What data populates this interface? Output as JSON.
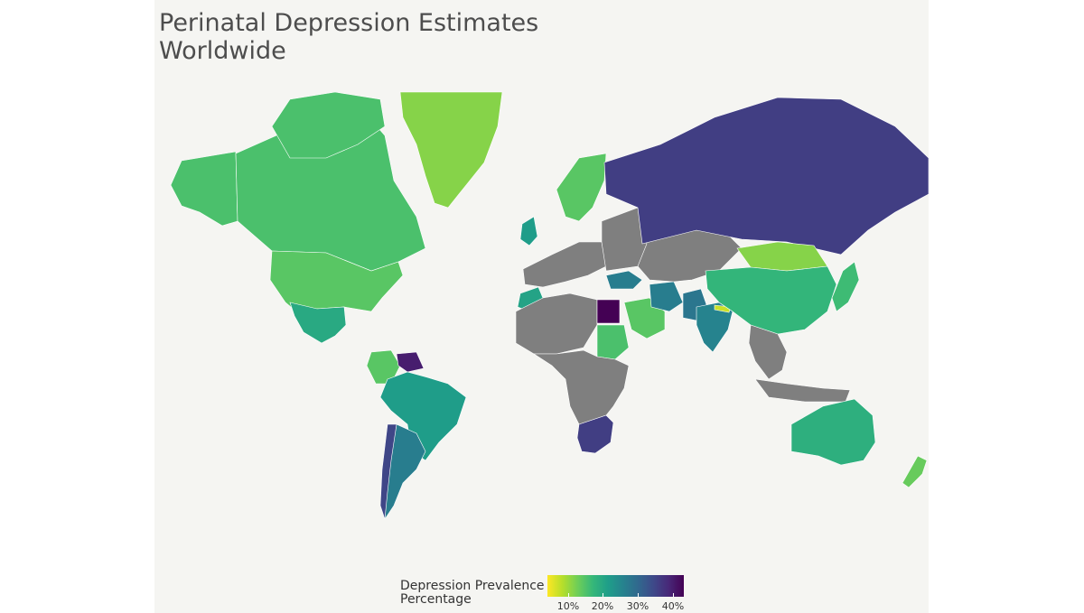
{
  "title": "Perinatal Depression Estimates\n Worldwide",
  "legend": {
    "title": "Depression Prevalence\n Percentage",
    "ticks": [
      "10%",
      "20%",
      "30%",
      "40%"
    ],
    "range": [
      5,
      43
    ],
    "colors": [
      "#fde725",
      "#b5de2b",
      "#6ece58",
      "#35b779",
      "#1f9e89",
      "#26828e",
      "#31688e",
      "#3e4989",
      "#482878",
      "#440154"
    ],
    "no_data_color": "#7f7f7f"
  },
  "map": {
    "projection": "Mercator (world)",
    "country_values": {
      "Greenland": 12,
      "Canada": 16,
      "Alaska (United States)": 16,
      "United States": 15,
      "Mexico": 20,
      "Brazil": 22,
      "Argentina": 27,
      "Chile": 35,
      "Colombia": 15,
      "Venezuela": 40,
      "Russia": 36,
      "China": 18,
      "Mongolia": 12,
      "India": 26,
      "Pakistan": 28,
      "Iran": 27,
      "Egypt": 43,
      "Saudi Arabia": 15,
      "Sudan": 16,
      "South Africa": 36,
      "Australia": 19,
      "New Zealand": 14,
      "Nepal": 8,
      "Turkey": 27,
      "Morocco": 21,
      "Scandinavia": 15,
      "United Kingdom": 22,
      "Japan": 17
    }
  }
}
